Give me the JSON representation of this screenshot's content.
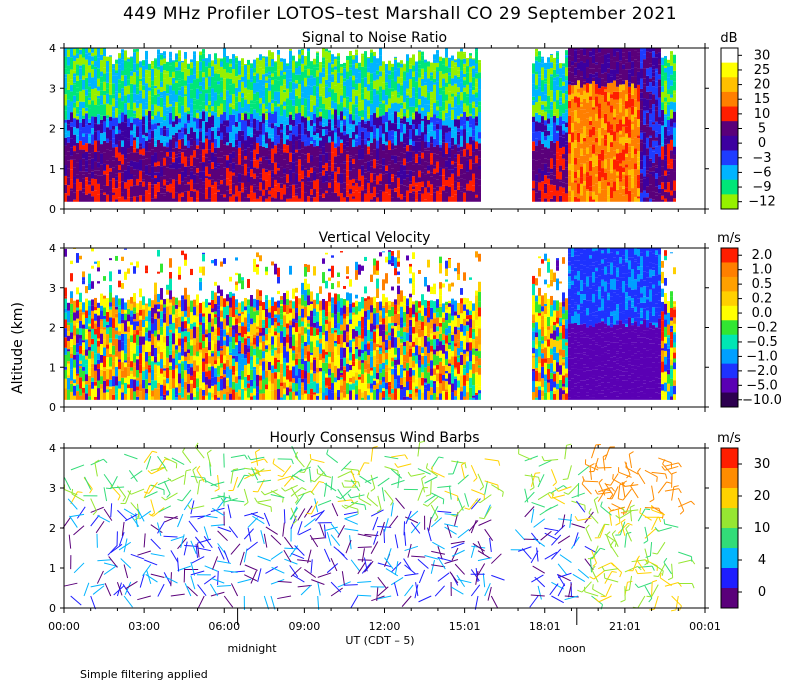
{
  "title": "449 MHz Profiler LOTOS–test Marshall CO 29 September 2021",
  "y_axis_label": "Altitude (km)",
  "x_axis_label": "UT  (CDT – 5)",
  "x_ticks": [
    "00:00",
    "03:00",
    "06:00",
    "09:00",
    "12:00",
    "15:01",
    "18:01",
    "21:01",
    "00:01"
  ],
  "y_ticks": [
    "0",
    "1",
    "2",
    "3",
    "4"
  ],
  "local_time_labels": {
    "midnight": "midnight",
    "noon": "noon"
  },
  "footnote": "Simple filtering applied",
  "colors": {
    "data_gap_start_h": 15.6,
    "data_gap_end_h": 17.5
  },
  "chart_data": [
    {
      "type": "heatmap",
      "title": "Signal to Noise Ratio",
      "unit": "dB",
      "xlim_hours": [
        0,
        24
      ],
      "ylim_km": [
        0,
        4
      ],
      "colorbar_ticks": [
        "30",
        "25",
        "20",
        "15",
        "10",
        "5",
        "0",
        "−3",
        "−6",
        "−9",
        "−12"
      ],
      "colorbar_colors": [
        "#ffffff",
        "#ffff00",
        "#ffc000",
        "#ff7f00",
        "#ff1e00",
        "#5a007a",
        "#3c00a0",
        "#1e3cff",
        "#00b4ff",
        "#00e678",
        "#96f000"
      ]
    },
    {
      "type": "heatmap",
      "title": "Vertical Velocity",
      "unit": "m/s",
      "xlim_hours": [
        0,
        24
      ],
      "ylim_km": [
        0,
        4
      ],
      "colorbar_ticks": [
        "2.0",
        "1.0",
        "0.5",
        "0.2",
        "0.0",
        "−0.2",
        "−0.5",
        "−1.0",
        "−2.0",
        "−5.0",
        "−10.0"
      ],
      "colorbar_colors": [
        "#ff1e00",
        "#ff7f00",
        "#ffa000",
        "#ffd000",
        "#ffff00",
        "#32e632",
        "#00e6b4",
        "#00a0ff",
        "#1e32ff",
        "#5a00b4",
        "#2d0050"
      ]
    },
    {
      "type": "scatter",
      "title": "Hourly Consensus Wind Barbs",
      "unit": "m/s",
      "xlim_hours": [
        0,
        24
      ],
      "ylim_km": [
        0,
        4
      ],
      "colorbar_ticks": [
        "30",
        "20",
        "10",
        "4",
        "0"
      ],
      "colorbar_colors": [
        "#ff1e00",
        "#ff8c00",
        "#ffd200",
        "#96e632",
        "#32dc78",
        "#00b4ff",
        "#1e1eff",
        "#5a007a"
      ]
    }
  ]
}
